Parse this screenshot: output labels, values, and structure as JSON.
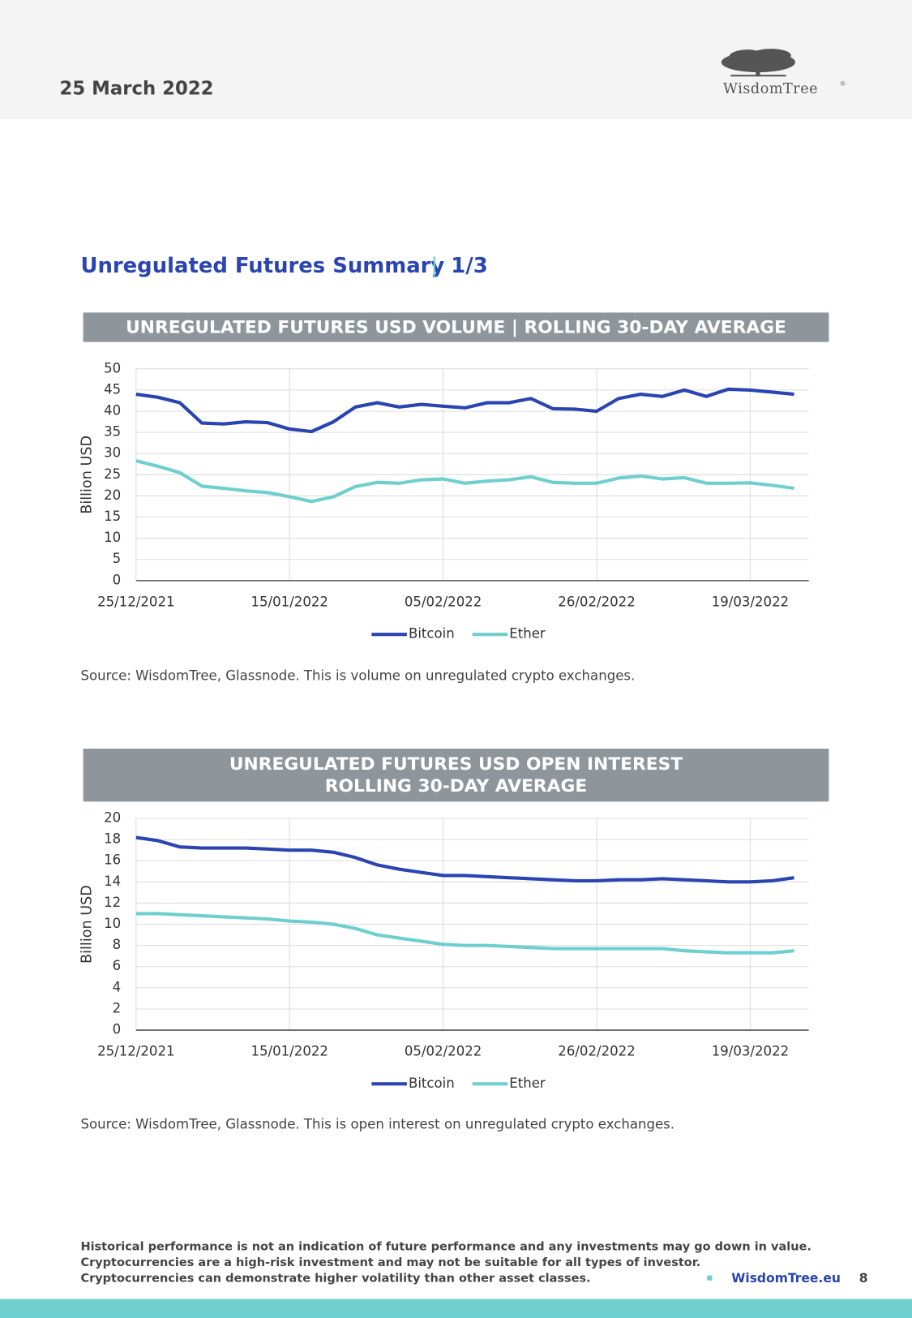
{
  "header": {
    "date": "25 March 2022",
    "logo": "WisdomTree",
    "logo_mark": "®"
  },
  "section": {
    "title": "Unregulated Futures Summary",
    "separator": "|",
    "part": "1/3"
  },
  "chart_data": [
    {
      "type": "line",
      "title": [
        "UNREGULATED FUTURES USD VOLUME | ROLLING 30-DAY AVERAGE"
      ],
      "y_label": "Billion USD",
      "x": [
        "25/12/2021",
        "28/12/2021",
        "31/12/2021",
        "03/01/2022",
        "06/01/2022",
        "09/01/2022",
        "12/01/2022",
        "15/01/2022",
        "18/01/2022",
        "21/01/2022",
        "24/01/2022",
        "27/01/2022",
        "30/01/2022",
        "02/02/2022",
        "05/02/2022",
        "08/02/2022",
        "11/02/2022",
        "14/02/2022",
        "17/02/2022",
        "20/02/2022",
        "23/02/2022",
        "26/02/2022",
        "01/03/2022",
        "04/03/2022",
        "07/03/2022",
        "10/03/2022",
        "13/03/2022",
        "16/03/2022",
        "19/03/2022",
        "22/03/2022",
        "25/03/2022"
      ],
      "xlim": [
        "25/12/2021",
        "27/03/2022"
      ],
      "xticks": [
        "25/12/2021",
        "15/01/2022",
        "05/02/2022",
        "26/02/2022",
        "19/03/2022"
      ],
      "ylim": [
        0,
        50
      ],
      "yticks": [
        0,
        5,
        10,
        15,
        20,
        25,
        30,
        35,
        40,
        45,
        50
      ],
      "grid": true,
      "legend": "bottom",
      "series": [
        {
          "name": "Bitcoin",
          "color": "#2a44b0",
          "values": [
            44,
            43.3,
            42,
            37.2,
            37,
            37.5,
            37.3,
            35.8,
            35.2,
            37.5,
            41,
            42,
            41,
            41.6,
            41.2,
            40.8,
            42,
            42,
            43,
            40.6,
            40.5,
            40,
            43,
            44,
            43.5,
            45,
            43.5,
            45.2,
            45,
            44.5,
            44
          ]
        },
        {
          "name": "Ether",
          "color": "#6fcfcf",
          "values": [
            28.3,
            27,
            25.5,
            22.3,
            21.8,
            21.2,
            20.8,
            19.8,
            18.7,
            19.8,
            22.2,
            23.2,
            23,
            23.8,
            24,
            23,
            23.5,
            23.8,
            24.5,
            23.2,
            23,
            23,
            24.2,
            24.7,
            24,
            24.3,
            23,
            23,
            23.1,
            22.5,
            21.8
          ]
        }
      ],
      "source": "Source: WisdomTree, Glassnode. This is volume on unregulated crypto exchanges."
    },
    {
      "type": "line",
      "title": [
        "UNREGULATED FUTURES USD OPEN INTEREST",
        "ROLLING 30-DAY AVERAGE"
      ],
      "y_label": "Billion USD",
      "x": [
        "25/12/2021",
        "28/12/2021",
        "31/12/2021",
        "03/01/2022",
        "06/01/2022",
        "09/01/2022",
        "12/01/2022",
        "15/01/2022",
        "18/01/2022",
        "21/01/2022",
        "24/01/2022",
        "27/01/2022",
        "30/01/2022",
        "02/02/2022",
        "05/02/2022",
        "08/02/2022",
        "11/02/2022",
        "14/02/2022",
        "17/02/2022",
        "20/02/2022",
        "23/02/2022",
        "26/02/2022",
        "01/03/2022",
        "04/03/2022",
        "07/03/2022",
        "10/03/2022",
        "13/03/2022",
        "16/03/2022",
        "19/03/2022",
        "22/03/2022",
        "25/03/2022"
      ],
      "xlim": [
        "25/12/2021",
        "27/03/2022"
      ],
      "xticks": [
        "25/12/2021",
        "15/01/2022",
        "05/02/2022",
        "26/02/2022",
        "19/03/2022"
      ],
      "ylim": [
        0,
        20
      ],
      "yticks": [
        0,
        2,
        4,
        6,
        8,
        10,
        12,
        14,
        16,
        18,
        20
      ],
      "grid": true,
      "legend": "bottom",
      "series": [
        {
          "name": "Bitcoin",
          "color": "#2a44b0",
          "values": [
            18.2,
            17.9,
            17.3,
            17.2,
            17.2,
            17.2,
            17.1,
            17.0,
            17.0,
            16.8,
            16.3,
            15.6,
            15.2,
            14.9,
            14.6,
            14.6,
            14.5,
            14.4,
            14.3,
            14.2,
            14.1,
            14.1,
            14.2,
            14.2,
            14.3,
            14.2,
            14.1,
            14.0,
            14.0,
            14.1,
            14.4
          ]
        },
        {
          "name": "Ether",
          "color": "#6fcfcf",
          "values": [
            11.0,
            11.0,
            10.9,
            10.8,
            10.7,
            10.6,
            10.5,
            10.3,
            10.2,
            10.0,
            9.6,
            9.0,
            8.7,
            8.4,
            8.1,
            8.0,
            8.0,
            7.9,
            7.8,
            7.7,
            7.7,
            7.7,
            7.7,
            7.7,
            7.7,
            7.5,
            7.4,
            7.3,
            7.3,
            7.3,
            7.5
          ]
        }
      ],
      "source": "Source: WisdomTree, Glassnode. This is open interest on unregulated crypto exchanges."
    }
  ],
  "footer": {
    "disclaimer": [
      "Historical performance is not an indication of future performance and any investments may go down in value.",
      "Cryptocurrencies are a high-risk investment and may not be suitable for all types of investor.",
      "Cryptocurrencies can demonstrate higher volatility than other asset classes."
    ],
    "website": "WisdomTree.eu",
    "page": "8"
  }
}
